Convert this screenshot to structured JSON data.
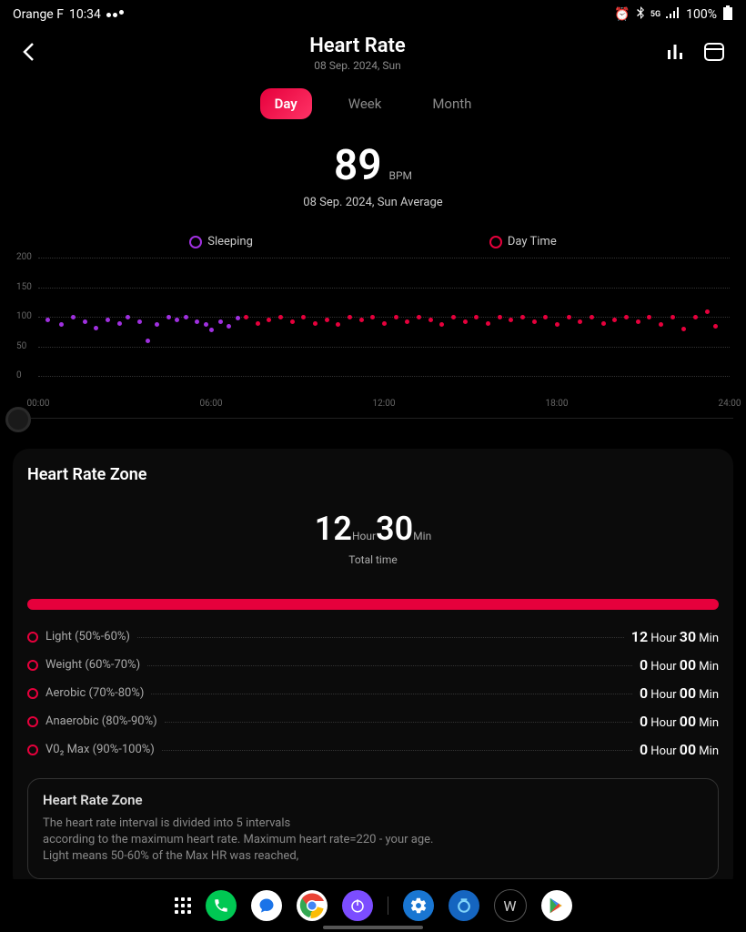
{
  "status": {
    "carrier": "Orange F",
    "time": "10:34",
    "battery": "100%"
  },
  "header": {
    "title": "Heart Rate",
    "subtitle": "08 Sep. 2024, Sun"
  },
  "tabs": {
    "day": "Day",
    "week": "Week",
    "month": "Month",
    "active": "day"
  },
  "summary": {
    "value": "89",
    "unit": "BPM",
    "label": "08 Sep. 2024, Sun Average"
  },
  "legend": {
    "sleeping": {
      "label": "Sleeping",
      "color": "#a030e0"
    },
    "daytime": {
      "label": "Day Time",
      "color": "#e6003c"
    }
  },
  "chart": {
    "ymin": 0,
    "ymax": 200,
    "yticks": [
      0,
      50,
      100,
      150,
      200
    ],
    "xticks": [
      {
        "h": 0,
        "label": "00:00"
      },
      {
        "h": 6,
        "label": "06:00"
      },
      {
        "h": 12,
        "label": "12:00"
      },
      {
        "h": 18,
        "label": "18:00"
      },
      {
        "h": 24,
        "label": "24:00"
      }
    ],
    "grid_color": "#333",
    "sleeping_color": "#a030e0",
    "daytime_color": "#e6003c",
    "sleeping_points": [
      {
        "h": 0.3,
        "v": 95
      },
      {
        "h": 0.8,
        "v": 88
      },
      {
        "h": 1.2,
        "v": 100
      },
      {
        "h": 1.6,
        "v": 92
      },
      {
        "h": 2.0,
        "v": 82
      },
      {
        "h": 2.4,
        "v": 95
      },
      {
        "h": 2.8,
        "v": 90
      },
      {
        "h": 3.1,
        "v": 100
      },
      {
        "h": 3.5,
        "v": 92
      },
      {
        "h": 3.8,
        "v": 60
      },
      {
        "h": 4.1,
        "v": 88
      },
      {
        "h": 4.5,
        "v": 100
      },
      {
        "h": 4.8,
        "v": 95
      },
      {
        "h": 5.1,
        "v": 100
      },
      {
        "h": 5.5,
        "v": 92
      },
      {
        "h": 5.8,
        "v": 88
      },
      {
        "h": 6.0,
        "v": 78
      },
      {
        "h": 6.3,
        "v": 92
      },
      {
        "h": 6.6,
        "v": 85
      },
      {
        "h": 6.9,
        "v": 98
      }
    ],
    "daytime_points": [
      {
        "h": 7.2,
        "v": 100
      },
      {
        "h": 7.6,
        "v": 90
      },
      {
        "h": 8.0,
        "v": 95
      },
      {
        "h": 8.4,
        "v": 100
      },
      {
        "h": 8.8,
        "v": 92
      },
      {
        "h": 9.2,
        "v": 100
      },
      {
        "h": 9.6,
        "v": 90
      },
      {
        "h": 10.0,
        "v": 95
      },
      {
        "h": 10.4,
        "v": 88
      },
      {
        "h": 10.8,
        "v": 100
      },
      {
        "h": 11.2,
        "v": 95
      },
      {
        "h": 11.6,
        "v": 100
      },
      {
        "h": 12.0,
        "v": 90
      },
      {
        "h": 12.4,
        "v": 100
      },
      {
        "h": 12.8,
        "v": 92
      },
      {
        "h": 13.2,
        "v": 100
      },
      {
        "h": 13.6,
        "v": 95
      },
      {
        "h": 14.0,
        "v": 88
      },
      {
        "h": 14.4,
        "v": 100
      },
      {
        "h": 14.8,
        "v": 92
      },
      {
        "h": 15.2,
        "v": 100
      },
      {
        "h": 15.6,
        "v": 90
      },
      {
        "h": 16.0,
        "v": 100
      },
      {
        "h": 16.4,
        "v": 95
      },
      {
        "h": 16.8,
        "v": 100
      },
      {
        "h": 17.2,
        "v": 92
      },
      {
        "h": 17.6,
        "v": 100
      },
      {
        "h": 18.0,
        "v": 88
      },
      {
        "h": 18.4,
        "v": 100
      },
      {
        "h": 18.8,
        "v": 92
      },
      {
        "h": 19.2,
        "v": 100
      },
      {
        "h": 19.6,
        "v": 90
      },
      {
        "h": 20.0,
        "v": 95
      },
      {
        "h": 20.4,
        "v": 100
      },
      {
        "h": 20.8,
        "v": 92
      },
      {
        "h": 21.2,
        "v": 100
      },
      {
        "h": 21.6,
        "v": 88
      },
      {
        "h": 22.0,
        "v": 100
      },
      {
        "h": 22.4,
        "v": 80
      },
      {
        "h": 22.8,
        "v": 100
      },
      {
        "h": 23.2,
        "v": 110
      },
      {
        "h": 23.5,
        "v": 85
      }
    ]
  },
  "zone": {
    "title": "Heart Rate Zone",
    "total_hours": "12",
    "hour_label": "Hour",
    "total_mins": "30",
    "min_label": "Min",
    "total_label": "Total time",
    "bar_color": "#e6003c",
    "rows": [
      {
        "label": "Light (50%-60%)",
        "color": "#e6003c",
        "h": "12",
        "m": "30"
      },
      {
        "label": "Weight (60%-70%)",
        "color": "#e6003c",
        "h": "0",
        "m": "00"
      },
      {
        "label": "Aerobic (70%-80%)",
        "color": "#e6003c",
        "h": "0",
        "m": "00"
      },
      {
        "label": "Anaerobic (80%-90%)",
        "color": "#e6003c",
        "h": "0",
        "m": "00"
      },
      {
        "label": "V0₂ Max (90%-100%)",
        "color": "#e6003c",
        "h": "0",
        "m": "00"
      }
    ],
    "info_title": "Heart Rate Zone",
    "info_text": "The heart rate interval is divided into 5 intervals\naccording to the maximum heart rate. Maximum heart rate=220 - your age.\nLight means 50-60% of the Max HR was reached,"
  },
  "units": {
    "hour": "Hour",
    "min": "Min"
  },
  "nav_apps": [
    {
      "name": "phone",
      "bg": "#00c853",
      "glyph": "phone"
    },
    {
      "name": "messages",
      "bg": "#fff",
      "glyph": "chat"
    },
    {
      "name": "chrome",
      "bg": "#fff",
      "glyph": "chrome"
    },
    {
      "name": "power",
      "bg": "#7c4dff",
      "glyph": "power"
    },
    {
      "name": "settings",
      "bg": "#1976d2",
      "glyph": "gear"
    },
    {
      "name": "circle",
      "bg": "#1565c0",
      "glyph": "ring"
    },
    {
      "name": "w",
      "bg": "#000",
      "glyph": "W",
      "border": "#555"
    },
    {
      "name": "play",
      "bg": "#fff",
      "glyph": "play"
    }
  ]
}
